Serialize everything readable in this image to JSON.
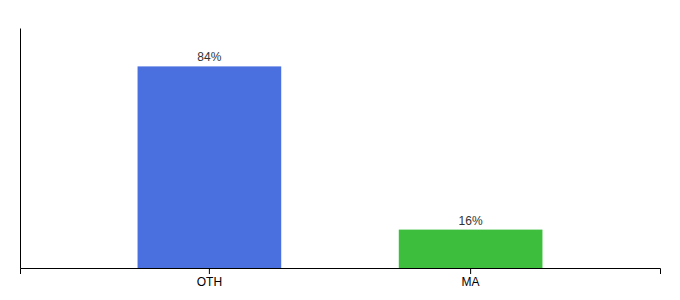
{
  "chart_data": {
    "type": "bar",
    "categories": [
      "OTH",
      "MA"
    ],
    "values": [
      84,
      16
    ],
    "value_labels": [
      "84%",
      "16%"
    ],
    "colors": [
      "#4a6fdf",
      "#3dbf3d"
    ],
    "ylim": [
      0,
      100
    ],
    "grid": false,
    "data_labels": true,
    "tick_labels": "x"
  }
}
